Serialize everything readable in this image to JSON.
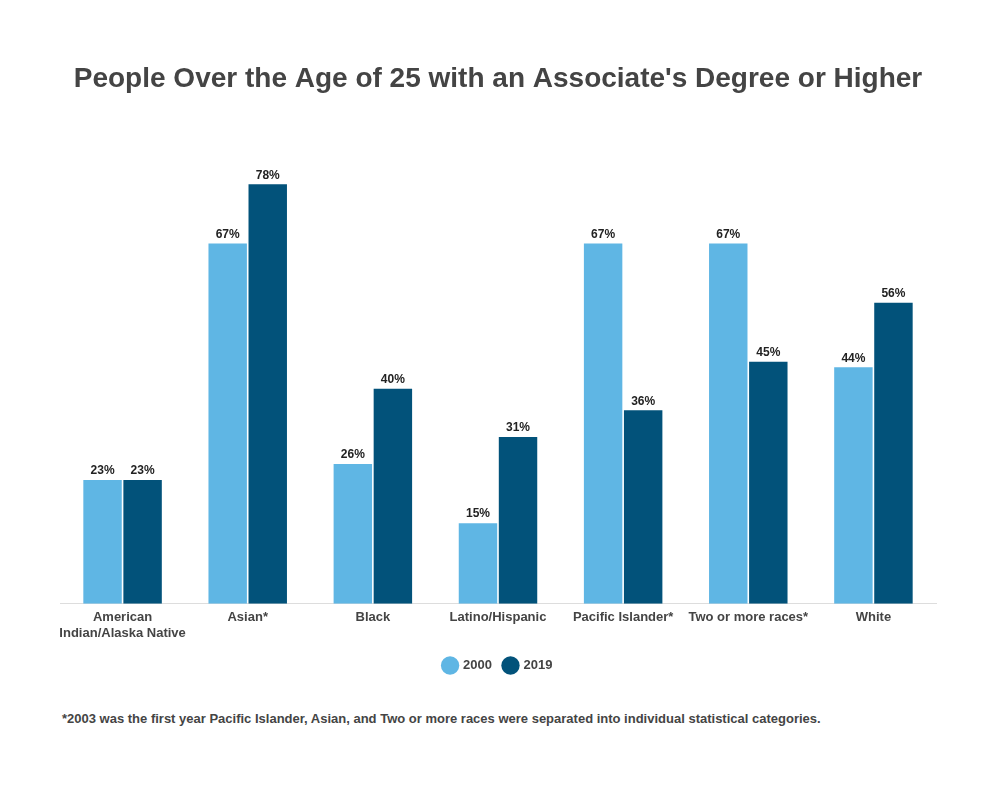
{
  "chart_data": {
    "type": "bar",
    "title": "People Over the Age of 25 with an Associate's Degree or Higher",
    "footnote": "*2003 was the first year Pacific Islander, Asian, and Two or more races were separated into individual statistical categories.",
    "categories": [
      "American Indian/Alaska Native",
      "Asian*",
      "Black",
      "Latino/Hispanic",
      "Pacific Islander*",
      "Two or more races*",
      "White"
    ],
    "series": [
      {
        "name": "2000",
        "color": "#5fb6e4",
        "values": [
          23,
          67,
          26,
          15,
          67,
          67,
          44
        ],
        "value_labels": [
          "23%",
          "67%",
          "26%",
          "15%",
          "67%",
          "67%",
          "44%"
        ]
      },
      {
        "name": "2019",
        "color": "#02527a",
        "values": [
          23,
          78,
          40,
          31,
          36,
          45,
          56
        ],
        "value_labels": [
          "23%",
          "78%",
          "40%",
          "31%",
          "36%",
          "45%",
          "56%"
        ]
      }
    ],
    "ylim": [
      0,
      80
    ],
    "grid": false,
    "legend": "bottom",
    "data_labels": true,
    "tick_labels": "x"
  }
}
